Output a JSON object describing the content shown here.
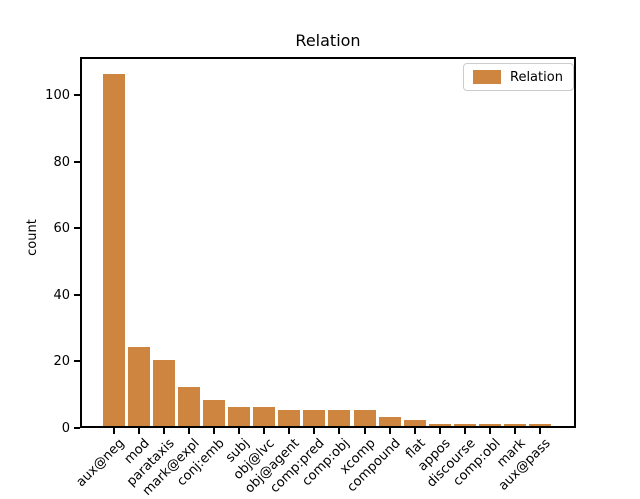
{
  "figure": {
    "title": "Relation",
    "ylabel": "count"
  },
  "legend": {
    "label": "Relation"
  },
  "colors": {
    "bar_fill": "#CD853F",
    "bar_edge": "#ffffff",
    "spine": "#000000",
    "legend_border": "#cccccc"
  },
  "chart_data": {
    "type": "bar",
    "title": "Relation",
    "xlabel": "",
    "ylabel": "count",
    "categories": [
      "aux@neg",
      "mod",
      "parataxis",
      "mark@expl",
      "conj:emb",
      "subj",
      "obj@lvc",
      "obj@agent",
      "comp:pred",
      "comp:obj",
      "xcomp",
      "compound",
      "flat",
      "appos",
      "discourse",
      "comp:obl",
      "mark",
      "aux@pass"
    ],
    "values": [
      106,
      24,
      20,
      12,
      8,
      6,
      6,
      5,
      5,
      5,
      5,
      3,
      2,
      1,
      1,
      1,
      1,
      1
    ],
    "yticks": [
      0,
      20,
      40,
      60,
      80,
      100
    ],
    "ylim": [
      0,
      111
    ],
    "xticklabel_rotation": 45,
    "grid": false,
    "legend_entries": [
      "Relation"
    ],
    "legend_position": "upper right"
  }
}
